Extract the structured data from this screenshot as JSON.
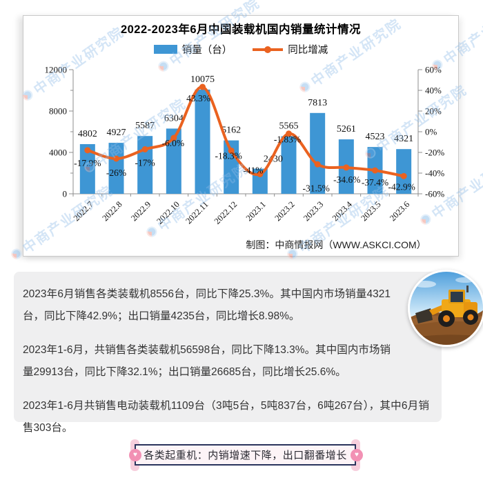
{
  "chart": {
    "title": "2022-2023年6月中国装载机国内销量统计情况",
    "footer": "制图：中商情报网（WWW.ASKCI.COM）",
    "watermark_text": "中商产业研究院",
    "legend": [
      {
        "label": "销量（台）",
        "type": "bar"
      },
      {
        "label": "同比增减",
        "type": "line"
      }
    ]
  },
  "chart_data": {
    "type": "bar",
    "combo": "bar+line",
    "title": "2022-2023年6月中国装载机国内销量统计情况",
    "categories": [
      "2022.7",
      "2022.8",
      "2022.9",
      "2022.10",
      "2022.11",
      "2022.12",
      "2023.1",
      "2023.2",
      "2023.3",
      "2023.4",
      "2023.5",
      "2023.6"
    ],
    "series": [
      {
        "name": "销量（台）",
        "type": "bar",
        "axis": "left",
        "values": [
          4802,
          4927,
          5587,
          6304,
          10075,
          5162,
          2430,
          5565,
          7813,
          5261,
          4523,
          4321
        ],
        "value_labels": [
          "4802",
          "4927",
          "5587",
          "6304",
          "10075",
          "5162",
          "2430",
          "5565",
          "7813",
          "5261",
          "4523",
          "4321"
        ]
      },
      {
        "name": "同比增减",
        "type": "line",
        "axis": "right",
        "values": [
          -17.9,
          -26,
          -17,
          -6.0,
          43.3,
          -18.3,
          -41,
          -1.83,
          -31.5,
          -34.6,
          -37.4,
          -42.9
        ],
        "value_labels": [
          "-17.9%",
          "-26%",
          "-17%",
          "-6.0%",
          "43.3%",
          "-18.3%",
          "-41%",
          "-1.83%",
          "-31.5%",
          "-34.6%",
          "-37.4%",
          "-42.9%"
        ]
      }
    ],
    "left_axis": {
      "min": 0,
      "max": 12000,
      "major_step": 4000,
      "minor_step": 2000,
      "tick_labels": [
        "0",
        "4000",
        "8000",
        "12000"
      ]
    },
    "right_axis": {
      "min": -60,
      "max": 60,
      "step": 20,
      "tick_labels": [
        "-60%",
        "-40%",
        "-20%",
        "0%",
        "20%",
        "40%",
        "60%"
      ]
    },
    "grid": false,
    "legend_position": "top"
  },
  "summary": {
    "paragraphs": [
      "2023年6月销售各类装载机8556台，同比下降25.3%。其中国内市场销量4321台，同比下降42.9%；出口销量4235台，同比增长8.98%。",
      "2023年1-6月，共销售各类装载机56598台，同比下降13.3%。其中国内市场销量29913台，同比下降32.1%；出口销量26685台，同比增长25.6%。",
      "2023年1-6月共销售电动装载机1109台（3吨5台，5吨837台，6吨267台），其中6月销售303台。"
    ]
  },
  "banner": {
    "text": "各类起重机：内销增速下降，出口翻番增长",
    "pin_icon": "heart-pin-icon"
  },
  "colors": {
    "bar": "#3E96D4",
    "line": "#EA6220",
    "axis": "#8c8c8c",
    "label": "#111111",
    "banner_border": "#29335C",
    "banner_bg": "#FDF4F7",
    "pin": "#F291B4",
    "strip": "#F7CFDD",
    "panel_bg": "#EFEFF0",
    "watermark": "#8FBCE8"
  }
}
